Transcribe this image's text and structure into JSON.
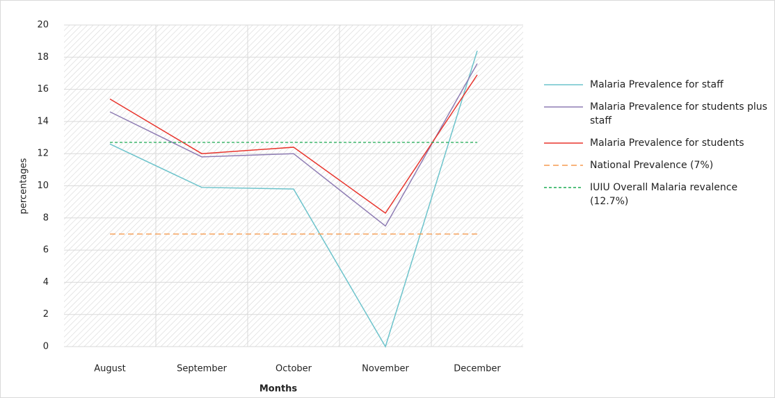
{
  "chart_data": {
    "type": "line",
    "categories": [
      "August",
      "September",
      "October",
      "November",
      "December"
    ],
    "xlabel": "Months",
    "ylabel": "percentages",
    "ylim": [
      0,
      20
    ],
    "yticks": [
      0,
      2,
      4,
      6,
      8,
      10,
      12,
      14,
      16,
      18,
      20
    ],
    "grid": true,
    "legend": "right",
    "series": [
      {
        "name": "Malaria Prevalence for staff",
        "color": "#6cc3cb",
        "style": "solid",
        "values": [
          12.6,
          9.9,
          9.8,
          0,
          18.4
        ]
      },
      {
        "name": "Malaria Prevalence for  students plus staff",
        "color": "#8e7cb3",
        "style": "solid",
        "values": [
          14.6,
          11.8,
          12.0,
          7.5,
          17.6
        ]
      },
      {
        "name": "Malaria Prevalence for students",
        "color": "#e8332b",
        "style": "solid",
        "values": [
          15.4,
          12.0,
          12.4,
          8.3,
          16.9
        ]
      },
      {
        "name": "National Prevalence (7%)",
        "color": "#f59a4e",
        "style": "dashed",
        "values": [
          7,
          7,
          7,
          7,
          7
        ]
      },
      {
        "name": "IUIU Overall Malaria revalence (12.7%)",
        "color": "#1aab52",
        "style": "dotted",
        "values": [
          12.7,
          12.7,
          12.7,
          12.7,
          12.7
        ]
      }
    ]
  }
}
